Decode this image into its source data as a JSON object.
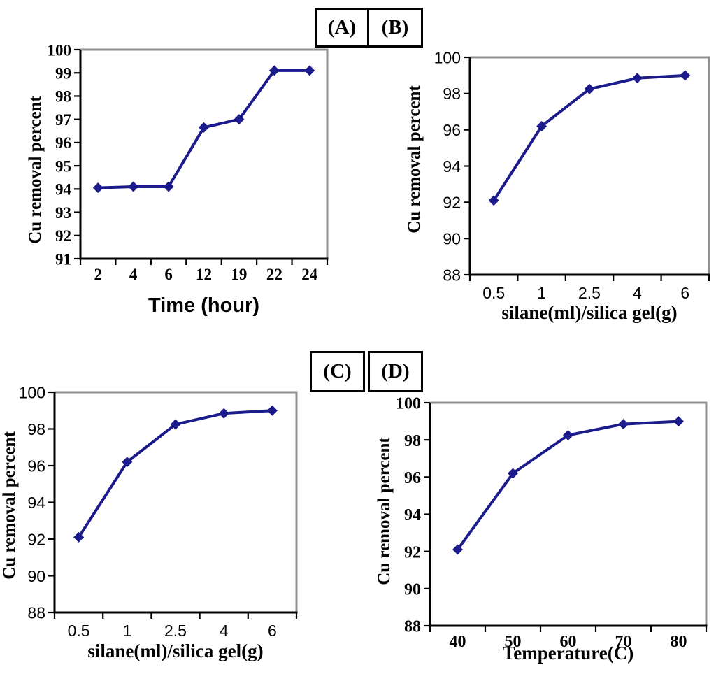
{
  "figure": {
    "background_color": "#ffffff",
    "line_color": "#1b1b8c",
    "axis_color": "#000000",
    "border_color": "#919191"
  },
  "panels": [
    {
      "id": "A",
      "label": "(A)"
    },
    {
      "id": "B",
      "label": "(B)"
    },
    {
      "id": "C",
      "label": "(C)"
    },
    {
      "id": "D",
      "label": "(D)"
    }
  ],
  "chart_data": [
    {
      "id": "A",
      "type": "line",
      "categories": [
        "2",
        "4",
        "6",
        "12",
        "19",
        "22",
        "24"
      ],
      "values": [
        94.05,
        94.1,
        94.1,
        96.65,
        97.0,
        99.1,
        99.1
      ],
      "xlabel": "Time (hour)",
      "ylabel": "Cu removal percent",
      "ylim": [
        91,
        100
      ],
      "ytick_step": 1,
      "yticks": [
        91,
        92,
        93,
        94,
        95,
        96,
        97,
        98,
        99,
        100
      ],
      "marker": "diamond",
      "line_color": "#1b1b8c",
      "grid": false,
      "legend": "none"
    },
    {
      "id": "B",
      "type": "line",
      "categories": [
        "0.5",
        "1",
        "2.5",
        "4",
        "6"
      ],
      "values": [
        92.1,
        96.2,
        98.25,
        98.85,
        99.0
      ],
      "xlabel": "silane(ml)/silica gel(g)",
      "ylabel": "Cu removal percent",
      "ylim": [
        88,
        100
      ],
      "ytick_step": 2,
      "yticks": [
        88,
        90,
        92,
        94,
        96,
        98,
        100
      ],
      "marker": "diamond",
      "line_color": "#1b1b8c",
      "grid": false,
      "legend": "none"
    },
    {
      "id": "C",
      "type": "line",
      "categories": [
        "0.5",
        "1",
        "2.5",
        "4",
        "6"
      ],
      "values": [
        92.1,
        96.2,
        98.25,
        98.85,
        99.0
      ],
      "xlabel": "silane(ml)/silica gel(g)",
      "ylabel": "Cu removal percent",
      "ylim": [
        88,
        100
      ],
      "ytick_step": 2,
      "yticks": [
        88,
        90,
        92,
        94,
        96,
        98,
        100
      ],
      "marker": "diamond",
      "line_color": "#1b1b8c",
      "grid": false,
      "legend": "none"
    },
    {
      "id": "D",
      "type": "line",
      "categories": [
        "40",
        "50",
        "60",
        "70",
        "80"
      ],
      "values": [
        92.1,
        96.2,
        98.25,
        98.85,
        99.0
      ],
      "xlabel": "Temperature(C)",
      "ylabel": "Cu removal percent",
      "ylim": [
        88,
        100
      ],
      "ytick_step": 2,
      "yticks": [
        88,
        90,
        92,
        94,
        96,
        98,
        100
      ],
      "marker": "diamond",
      "line_color": "#1b1b8c",
      "grid": false,
      "legend": "none"
    }
  ]
}
